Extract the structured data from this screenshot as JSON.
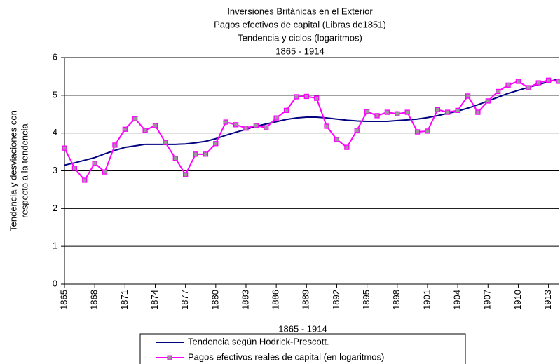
{
  "chart_data": {
    "type": "line",
    "title": [
      "Inversiones Británicas en el Exterior",
      "Pagos efectivos de capital (Libras de1851)",
      "Tendencia y ciclos (logaritmos)",
      "1865 - 1914"
    ],
    "y_label": [
      "Tendencia y desviaciones con",
      "respecto a la tendencia"
    ],
    "x_label": "1865 - 1914",
    "x": [
      1865,
      1866,
      1867,
      1868,
      1869,
      1870,
      1871,
      1872,
      1873,
      1874,
      1875,
      1876,
      1877,
      1878,
      1879,
      1880,
      1881,
      1882,
      1883,
      1884,
      1885,
      1886,
      1887,
      1888,
      1889,
      1890,
      1891,
      1892,
      1893,
      1894,
      1895,
      1896,
      1897,
      1898,
      1899,
      1900,
      1901,
      1902,
      1903,
      1904,
      1905,
      1906,
      1907,
      1908,
      1909,
      1910,
      1911,
      1912,
      1913,
      1914
    ],
    "xlim": [
      1865,
      1914
    ],
    "xticks": [
      1865,
      1868,
      1871,
      1874,
      1877,
      1880,
      1883,
      1886,
      1889,
      1892,
      1895,
      1898,
      1901,
      1904,
      1907,
      1910,
      1913
    ],
    "ylim": [
      0,
      6
    ],
    "yticks": [
      0,
      1,
      2,
      3,
      4,
      5,
      6
    ],
    "grid": true,
    "series": [
      {
        "name": "Tendencia según Hodrick-Prescott.",
        "color": "#000080",
        "marker": false,
        "values": [
          3.15,
          3.21,
          3.28,
          3.35,
          3.45,
          3.54,
          3.62,
          3.66,
          3.7,
          3.7,
          3.7,
          3.7,
          3.71,
          3.74,
          3.78,
          3.85,
          3.94,
          4.02,
          4.1,
          4.18,
          4.24,
          4.3,
          4.36,
          4.4,
          4.42,
          4.42,
          4.4,
          4.37,
          4.34,
          4.32,
          4.31,
          4.31,
          4.31,
          4.33,
          4.35,
          4.37,
          4.41,
          4.46,
          4.52,
          4.58,
          4.66,
          4.75,
          4.85,
          4.95,
          5.05,
          5.13,
          5.21,
          5.28,
          5.36,
          5.43
        ]
      },
      {
        "name": "Pagos efectivos reales de capital (en logaritmos)",
        "color": "#ff00ff",
        "marker": true,
        "values": [
          3.6,
          3.07,
          2.75,
          3.2,
          2.97,
          3.68,
          4.1,
          4.38,
          4.07,
          4.2,
          3.75,
          3.33,
          2.9,
          3.44,
          3.44,
          3.72,
          4.29,
          4.22,
          4.13,
          4.2,
          4.14,
          4.4,
          4.6,
          4.96,
          4.97,
          4.92,
          4.18,
          3.83,
          3.62,
          4.07,
          4.57,
          4.46,
          4.55,
          4.51,
          4.55,
          4.03,
          4.05,
          4.62,
          4.55,
          4.6,
          4.98,
          4.55,
          4.85,
          5.1,
          5.27,
          5.37,
          5.2,
          5.33,
          5.4,
          5.37
        ]
      }
    ]
  }
}
